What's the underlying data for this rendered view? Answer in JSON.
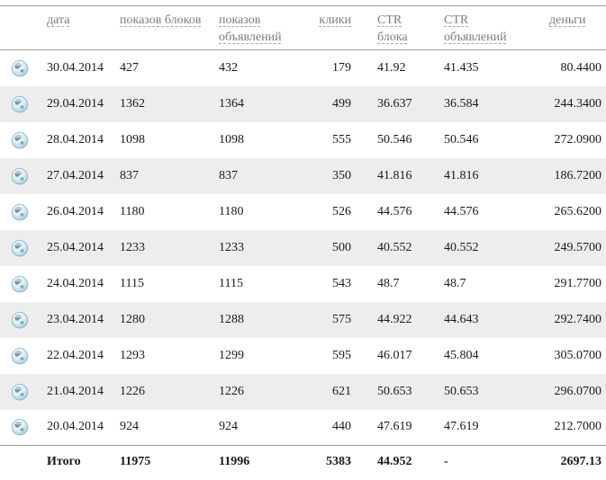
{
  "table": {
    "columns": [
      {
        "id": "date",
        "label": "дата"
      },
      {
        "id": "block_impressions",
        "label": "показов блоков"
      },
      {
        "id": "ad_impressions",
        "label": "показов объявлений"
      },
      {
        "id": "clicks",
        "label": "клики"
      },
      {
        "id": "ctr_block",
        "label": "CTR блока"
      },
      {
        "id": "ctr_ads",
        "label": "CTR объявлений"
      },
      {
        "id": "money",
        "label": "деньги"
      }
    ],
    "rows": [
      [
        "30.04.2014",
        "427",
        "432",
        "179",
        "41.92",
        "41.435",
        "80.4400"
      ],
      [
        "29.04.2014",
        "1362",
        "1364",
        "499",
        "36.637",
        "36.584",
        "244.3400"
      ],
      [
        "28.04.2014",
        "1098",
        "1098",
        "555",
        "50.546",
        "50.546",
        "272.0900"
      ],
      [
        "27.04.2014",
        "837",
        "837",
        "350",
        "41.816",
        "41.816",
        "186.7200"
      ],
      [
        "26.04.2014",
        "1180",
        "1180",
        "526",
        "44.576",
        "44.576",
        "265.6200"
      ],
      [
        "25.04.2014",
        "1233",
        "1233",
        "500",
        "40.552",
        "40.552",
        "249.5700"
      ],
      [
        "24.04.2014",
        "1115",
        "1115",
        "543",
        "48.7",
        "48.7",
        "291.7700"
      ],
      [
        "23.04.2014",
        "1280",
        "1288",
        "575",
        "44.922",
        "44.643",
        "292.7400"
      ],
      [
        "22.04.2014",
        "1293",
        "1299",
        "595",
        "46.017",
        "45.804",
        "305.0700"
      ],
      [
        "21.04.2014",
        "1226",
        "1226",
        "621",
        "50.653",
        "50.653",
        "296.0700"
      ],
      [
        "20.04.2014",
        "924",
        "924",
        "440",
        "47.619",
        "47.619",
        "212.7000"
      ]
    ],
    "totals": {
      "label": "Итого",
      "block_impressions": "11975",
      "ad_impressions": "11996",
      "clicks": "5383",
      "ctr_block": "44.952",
      "ctr_ads": "-",
      "money": "2697.13"
    }
  },
  "icons": {
    "row_marker": "globe-icon"
  },
  "colors": {
    "row_stripe": "#ededed",
    "header_text": "#7d7d7d",
    "border_line": "#9b9b9b",
    "body_text": "#1a1a1a",
    "globe_blue": "#9cc6d8"
  }
}
